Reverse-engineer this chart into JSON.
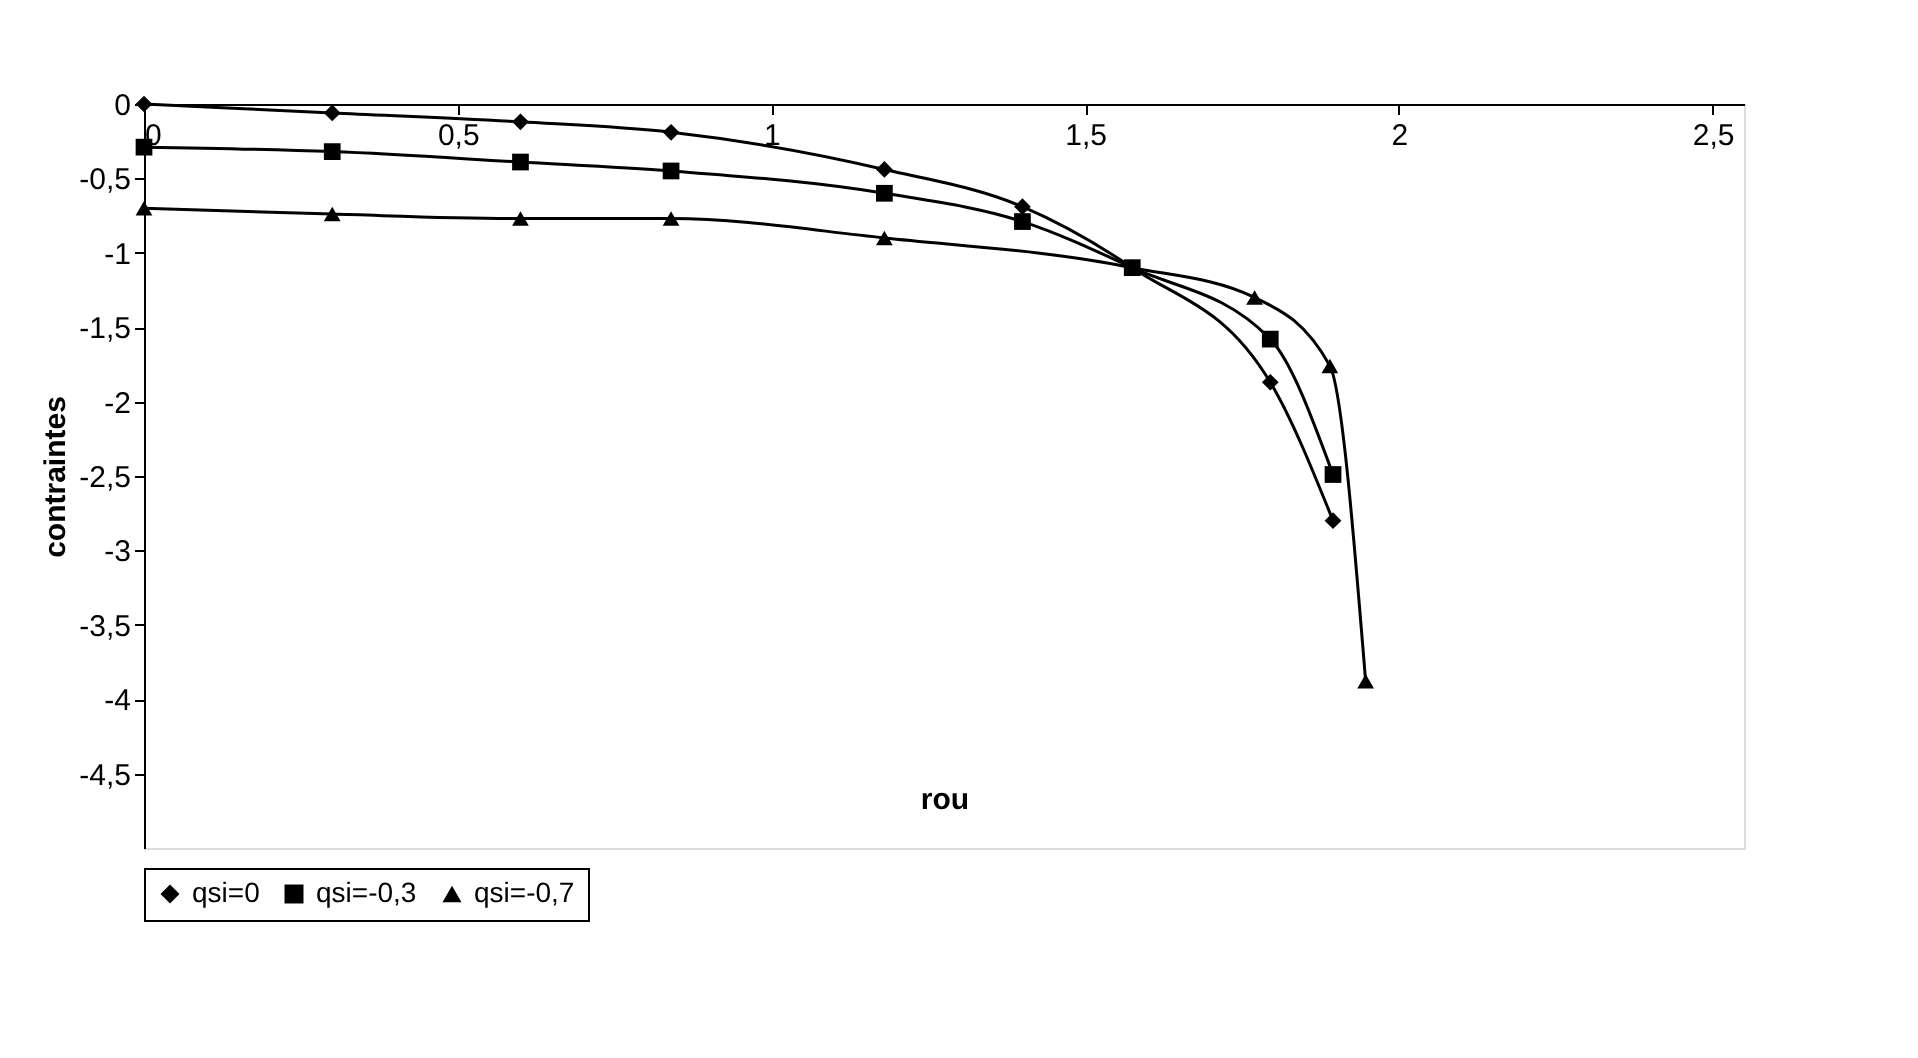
{
  "chart_data": {
    "type": "line",
    "xlabel": "rou",
    "ylabel": "contraintes",
    "x": [
      0,
      0.3,
      0.6,
      0.84,
      1.18,
      1.4,
      1.575,
      1.795,
      1.895
    ],
    "series": [
      {
        "name": "qsi=0",
        "color": "#000000",
        "marker": "diamond",
        "values": [
          0,
          -0.06,
          -0.12,
          -0.19,
          -0.44,
          -0.69,
          -1.1,
          -1.87,
          -2.8
        ]
      },
      {
        "name": "qsi=-0,3",
        "color": "#000000",
        "marker": "square",
        "values": [
          -0.29,
          -0.32,
          -0.39,
          -0.45,
          -0.6,
          -0.79,
          -1.1,
          -1.58,
          -2.49
        ]
      },
      {
        "name": "qsi=-0,7",
        "color": "#000000",
        "marker": "triangle",
        "x": [
          0,
          0.3,
          0.6,
          0.84,
          1.18,
          1.575,
          1.77,
          1.89,
          1.947
        ],
        "values": [
          -0.7,
          -0.74,
          -0.77,
          -0.77,
          -0.9,
          -1.1,
          -1.3,
          -1.76,
          -3.88
        ]
      }
    ],
    "xlim": [
      0,
      2.55
    ],
    "ylim": [
      -5,
      0
    ],
    "xticks": [
      0,
      {
        "value": 0.5,
        "label": "0,5"
      },
      1,
      {
        "value": 1.5,
        "label": "1,5"
      },
      2,
      {
        "value": 2.5,
        "label": "2,5"
      }
    ],
    "yticks": [
      0,
      {
        "value": -0.5,
        "label": "-0,5"
      },
      -1,
      {
        "value": -1.5,
        "label": "-1,5"
      },
      -2,
      {
        "value": -2.5,
        "label": "-2,5"
      },
      -3,
      {
        "value": -3.5,
        "label": "-3,5"
      },
      -4,
      {
        "value": -4.5,
        "label": "-4,5"
      }
    ],
    "grid": false,
    "legend": "bottom",
    "line_style": "solid"
  }
}
